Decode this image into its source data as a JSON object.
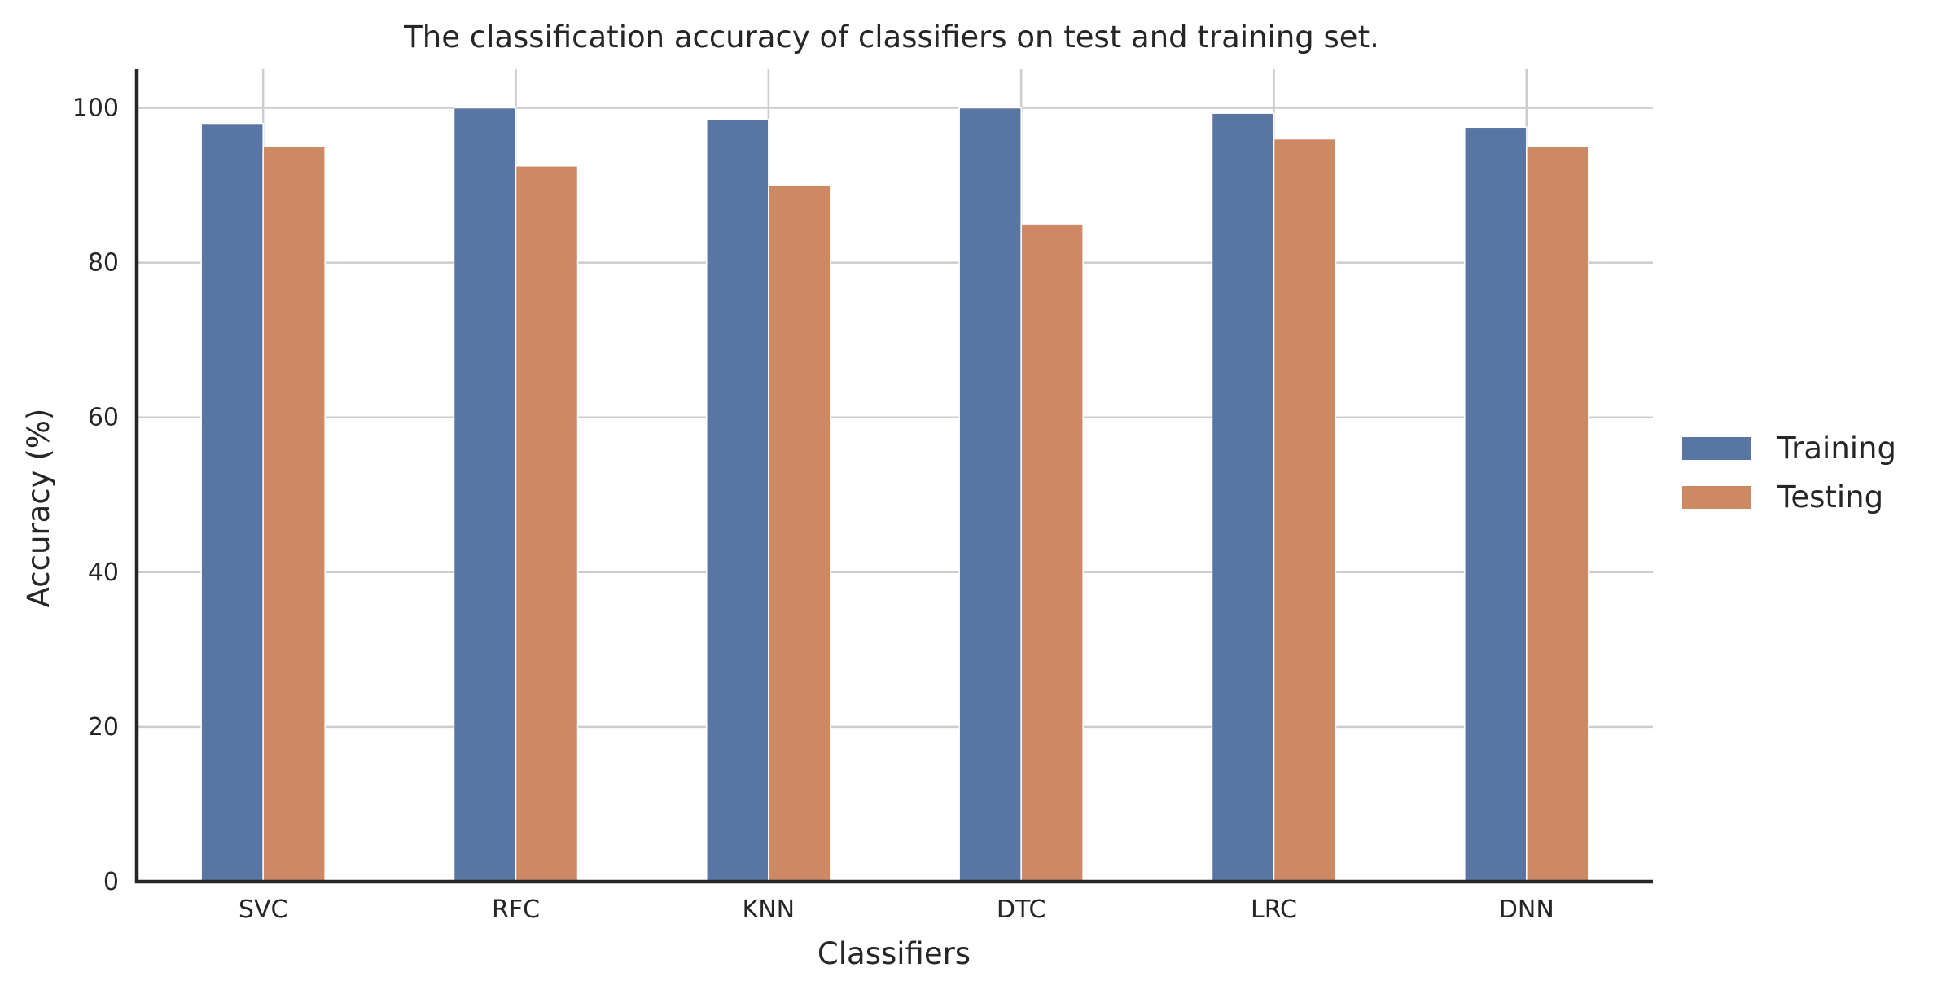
{
  "chart_data": {
    "type": "bar",
    "title": "The classification accuracy of classifiers on test and training set.",
    "xlabel": "Classifiers",
    "ylabel": "Accuracy (%)",
    "categories": [
      "SVC",
      "RFC",
      "KNN",
      "DTC",
      "LRC",
      "DNN"
    ],
    "series": [
      {
        "name": "Training",
        "color": "#5975a4",
        "values": [
          98,
          100,
          98.5,
          100,
          99.3,
          97.5
        ]
      },
      {
        "name": "Testing",
        "color": "#cc8963",
        "values": [
          95,
          92.5,
          90,
          85,
          96,
          95
        ]
      }
    ],
    "ylim": [
      0,
      105
    ],
    "yticks": [
      0,
      20,
      40,
      60,
      80,
      100
    ],
    "grid": true,
    "legend_position": "center-right"
  }
}
